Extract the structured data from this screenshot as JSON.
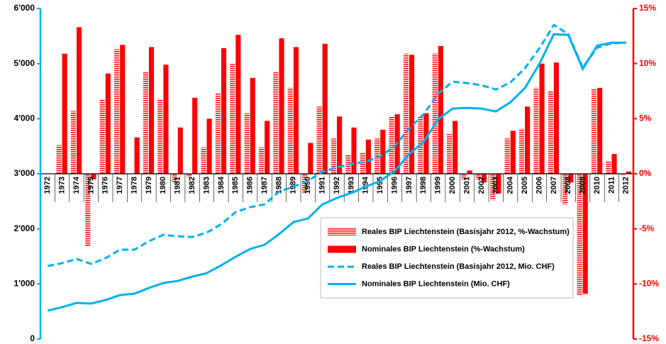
{
  "chart_data": {
    "type": "bar",
    "categories": [
      "1972",
      "1973",
      "1974",
      "1975",
      "1976",
      "1977",
      "1978",
      "1979",
      "1980",
      "1981",
      "1982",
      "1983",
      "1984",
      "1985",
      "1986",
      "1987",
      "1988",
      "1989",
      "1990",
      "1991",
      "1992",
      "1993",
      "1994",
      "1995",
      "1996",
      "1997",
      "1998",
      "1999",
      "2000",
      "2001",
      "2002",
      "2003",
      "2004",
      "2005",
      "2006",
      "2007",
      "2008",
      "2009",
      "2010",
      "2011",
      "2012"
    ],
    "series": [
      {
        "name": "Reales BIP Liechtenstein (Basisjahr 2012, %-Wachstum)",
        "type": "bar",
        "axis": "y2",
        "color": "#ff0000",
        "pattern": "hatch",
        "values": [
          null,
          2.6,
          5.7,
          -6.6,
          6.8,
          11.3,
          0,
          9.3,
          6.8,
          -0.8,
          -0.3,
          2.4,
          7.3,
          10.0,
          5.5,
          2.4,
          9.3,
          7.8,
          -1.7,
          6.1,
          3.2,
          1.7,
          1.9,
          3.2,
          5.2,
          10.9,
          5.2,
          10.9,
          3.6,
          -0.5,
          -0.5,
          -2.4,
          3.2,
          4.1,
          7.8,
          7.5,
          -2.8,
          -11.0,
          7.7,
          1.1,
          -0.1
        ]
      },
      {
        "name": "Nominales BIP Liechtenstein (%-Wachstum)",
        "type": "bar",
        "axis": "y2",
        "color": "#ff0000",
        "pattern": "solid",
        "values": [
          null,
          10.9,
          13.3,
          -0.5,
          9.1,
          11.7,
          3.3,
          11.5,
          9.9,
          4.2,
          6.9,
          5.0,
          11.4,
          12.6,
          8.7,
          4.8,
          12.3,
          11.5,
          2.8,
          11.8,
          5.2,
          4.2,
          3.1,
          4.0,
          5.4,
          10.8,
          5.5,
          11.6,
          4.8,
          0.3,
          -0.8,
          -1.8,
          3.9,
          6.1,
          10.0,
          10.1,
          -0.8,
          -10.9,
          7.8,
          1.8,
          0.2
        ]
      },
      {
        "name": "Reales BIP Liechtenstein (Basisjahr 2012, Mio. CHF)",
        "type": "line",
        "axis": "y",
        "color": "#00b0f0",
        "dash": true,
        "values": [
          1326,
          1377,
          1454,
          1364,
          1467,
          1622,
          1622,
          1776,
          1892,
          1866,
          1853,
          1931,
          2085,
          2304,
          2394,
          2445,
          2677,
          2767,
          2870,
          3037,
          3115,
          3179,
          3218,
          3320,
          3500,
          3822,
          4080,
          4453,
          4672,
          4646,
          4607,
          4530,
          4659,
          4916,
          5277,
          5701,
          5534,
          4929,
          5290,
          5367,
          5380
        ]
      },
      {
        "name": "Nominales BIP Liechtenstein (Mio. CHF)",
        "type": "line",
        "axis": "y",
        "color": "#00b0f0",
        "dash": false,
        "values": [
          515,
          579,
          656,
          644,
          708,
          798,
          824,
          927,
          1017,
          1055,
          1133,
          1197,
          1338,
          1493,
          1634,
          1712,
          1905,
          2124,
          2188,
          2445,
          2561,
          2651,
          2767,
          2870,
          3050,
          3359,
          3578,
          3990,
          4183,
          4196,
          4183,
          4131,
          4299,
          4556,
          4994,
          5534,
          5521,
          4903,
          5328,
          5380,
          5380
        ]
      }
    ],
    "ylim": [
      0,
      6000
    ],
    "yticks": [
      0,
      {
        "value": 1000,
        "label": "1'000"
      },
      {
        "value": 2000,
        "label": "2'000"
      },
      {
        "value": 3000,
        "label": "3'000"
      },
      {
        "value": 4000,
        "label": "4'000"
      },
      {
        "value": 5000,
        "label": "5'000"
      },
      {
        "value": 6000,
        "label": "6'000"
      }
    ],
    "y2lim": [
      -15,
      15
    ],
    "y2ticks": [
      {
        "value": -15,
        "label": "-15%"
      },
      {
        "value": -10,
        "label": "-10%"
      },
      {
        "value": -5,
        "label": "-5%"
      },
      {
        "value": 0,
        "label": "0%"
      },
      {
        "value": 5,
        "label": "5%"
      },
      {
        "value": 10,
        "label": "10%"
      },
      {
        "value": 15,
        "label": "15%"
      }
    ],
    "legend": "center"
  }
}
